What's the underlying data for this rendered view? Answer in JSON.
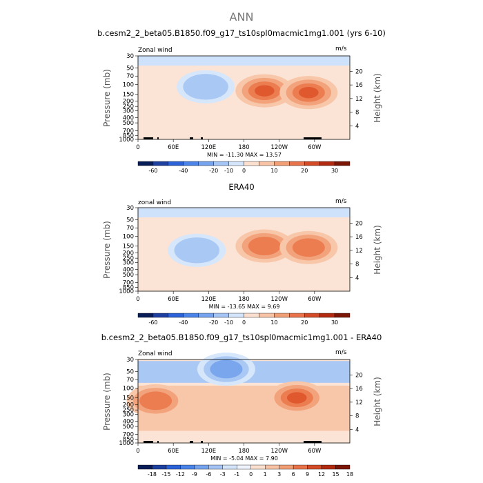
{
  "main_title": "ANN",
  "units_label": "m/s",
  "chart_data": [
    {
      "type": "contour",
      "title": "b.cesm2_2_beta05.B1850.f09_g17_ts10spl0macmic1mg1.001 (yrs 6-10)",
      "variable": "Zonal wind",
      "ylabel_left": "Pressure (mb)",
      "ylabel_right": "Height (km)",
      "pressure_ticks": [
        "30",
        "50",
        "70",
        "100",
        "150",
        "200",
        "250",
        "300",
        "400",
        "500",
        "700",
        "850",
        "1000"
      ],
      "height_ticks": [
        "4",
        "8",
        "12",
        "16",
        "20"
      ],
      "lon_ticks": [
        "0",
        "60E",
        "120E",
        "180",
        "120W",
        "60W"
      ],
      "stats": "MIN = -11.30   MAX =  13.57",
      "colorbar_labels": [
        "-60",
        "-40",
        "-20",
        "-10",
        "0",
        "10",
        "20",
        "30"
      ],
      "colorbar_colors": [
        "#081d58",
        "#1d3fa0",
        "#2c62d8",
        "#4a84e8",
        "#75a3ee",
        "#a4c4f5",
        "#d3e4fb",
        "#fbe0cf",
        "#f8c2a4",
        "#f29e74",
        "#e8734a",
        "#d24b26",
        "#b12a10",
        "#7b1505"
      ],
      "features": [
        {
          "sign": "neg",
          "level": 1,
          "lon": 115,
          "p": 110
        },
        {
          "sign": "pos",
          "level": 3,
          "lon": 215,
          "p": 130
        },
        {
          "sign": "pos",
          "level": 3,
          "lon": 290,
          "p": 140
        }
      ]
    },
    {
      "type": "contour",
      "title": "ERA40",
      "variable": "zonal wind",
      "ylabel_left": "Pressure (mb)",
      "ylabel_right": "Height (km)",
      "pressure_ticks": [
        "30",
        "50",
        "70",
        "100",
        "150",
        "200",
        "250",
        "300",
        "400",
        "500",
        "700",
        "850",
        "1000"
      ],
      "height_ticks": [
        "4",
        "8",
        "12",
        "16",
        "20"
      ],
      "lon_ticks": [
        "0",
        "60E",
        "120E",
        "180",
        "120W",
        "60W"
      ],
      "stats": "MIN = -13.65   MAX =    9.69",
      "colorbar_labels": [
        "-60",
        "-40",
        "-20",
        "-10",
        "0",
        "10",
        "20",
        "30"
      ],
      "colorbar_colors": [
        "#081d58",
        "#1d3fa0",
        "#2c62d8",
        "#4a84e8",
        "#75a3ee",
        "#a4c4f5",
        "#d3e4fb",
        "#fbe0cf",
        "#f8c2a4",
        "#f29e74",
        "#e8734a",
        "#d24b26",
        "#b12a10",
        "#7b1505"
      ],
      "features": [
        {
          "sign": "neg",
          "level": 1,
          "lon": 100,
          "p": 180
        },
        {
          "sign": "pos",
          "level": 2,
          "lon": 215,
          "p": 150
        },
        {
          "sign": "pos",
          "level": 2,
          "lon": 290,
          "p": 160
        }
      ]
    },
    {
      "type": "contour",
      "title": "b.cesm2_2_beta05.B1850.f09_g17_ts10spl0macmic1mg1.001 - ERA40",
      "variable": "Zonal wind",
      "ylabel_left": "Pressure (mb)",
      "ylabel_right": "Height (km)",
      "pressure_ticks": [
        "30",
        "50",
        "70",
        "100",
        "150",
        "200",
        "250",
        "300",
        "400",
        "500",
        "700",
        "850",
        "1000"
      ],
      "height_ticks": [
        "4",
        "8",
        "12",
        "16",
        "20"
      ],
      "lon_ticks": [
        "0",
        "60E",
        "120E",
        "180",
        "120W",
        "60W"
      ],
      "stats": "MIN =  -5.04   MAX =    7.90",
      "colorbar_labels": [
        "-18",
        "-15",
        "-12",
        "-9",
        "-6",
        "-3",
        "-1",
        "0",
        "1",
        "3",
        "6",
        "9",
        "12",
        "15",
        "18"
      ],
      "colorbar_colors": [
        "#081d58",
        "#1d3fa0",
        "#2c62d8",
        "#4a84e8",
        "#75a3ee",
        "#a4c4f5",
        "#d3e4fb",
        "#eef3fc",
        "#fbe0cf",
        "#f8c2a4",
        "#f29e74",
        "#e8734a",
        "#d24b26",
        "#b12a10",
        "#7b1505"
      ],
      "features": [
        {
          "sign": "neg",
          "level": 2,
          "lon": 150,
          "p": 45
        },
        {
          "sign": "pos",
          "level": 3,
          "lon": 270,
          "p": 150
        },
        {
          "sign": "pos",
          "level": 2,
          "lon": 30,
          "p": 170
        }
      ]
    }
  ]
}
